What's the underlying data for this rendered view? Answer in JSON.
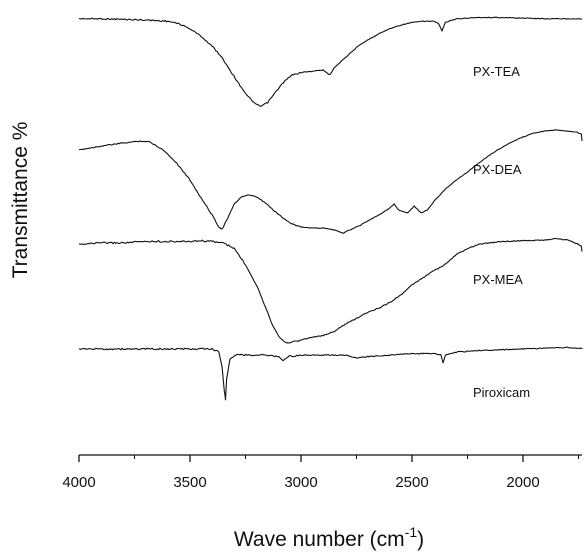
{
  "chart_data": {
    "type": "line",
    "title": "",
    "xlabel": "Wave number (cm",
    "xlabel_sup": "-1",
    "xlabel_end": ")",
    "ylabel": "Transmittance %",
    "xlim": [
      4000,
      1700
    ],
    "x_reversed": true,
    "y_ticks_shown": false,
    "grid": false,
    "x_ticks": [
      4000,
      3500,
      3000,
      2500,
      2000
    ],
    "x_tick_labels": [
      "4000",
      "3500",
      "3000",
      "2500",
      "2000"
    ],
    "series": [
      {
        "name": "PX-TEA",
        "points": [
          [
            4000,
            3
          ],
          [
            3900,
            3
          ],
          [
            3800,
            3.5
          ],
          [
            3700,
            4
          ],
          [
            3600,
            5
          ],
          [
            3550,
            7
          ],
          [
            3500,
            11
          ],
          [
            3450,
            17
          ],
          [
            3400,
            25
          ],
          [
            3360,
            33
          ],
          [
            3320,
            44
          ],
          [
            3280,
            55
          ],
          [
            3240,
            65
          ],
          [
            3200,
            72
          ],
          [
            3180,
            73
          ],
          [
            3150,
            70
          ],
          [
            3120,
            63
          ],
          [
            3080,
            54
          ],
          [
            3040,
            48
          ],
          [
            3000,
            46
          ],
          [
            2950,
            45
          ],
          [
            2900,
            44
          ],
          [
            2870,
            48
          ],
          [
            2850,
            42
          ],
          [
            2800,
            34
          ],
          [
            2750,
            26
          ],
          [
            2700,
            20
          ],
          [
            2650,
            15
          ],
          [
            2600,
            11
          ],
          [
            2550,
            8
          ],
          [
            2500,
            6
          ],
          [
            2450,
            5
          ],
          [
            2400,
            5
          ],
          [
            2380,
            7
          ],
          [
            2365,
            13
          ],
          [
            2350,
            6
          ],
          [
            2300,
            3
          ],
          [
            2200,
            2
          ],
          [
            2100,
            2
          ],
          [
            2000,
            2.5
          ],
          [
            1900,
            3
          ],
          [
            1800,
            3
          ],
          [
            1700,
            3
          ]
        ]
      },
      {
        "name": "PX-DEA",
        "points": [
          [
            4000,
            20
          ],
          [
            3900,
            16
          ],
          [
            3800,
            13
          ],
          [
            3720,
            11
          ],
          [
            3680,
            12
          ],
          [
            3620,
            20
          ],
          [
            3560,
            33
          ],
          [
            3500,
            50
          ],
          [
            3450,
            68
          ],
          [
            3400,
            85
          ],
          [
            3370,
            97
          ],
          [
            3355,
            99
          ],
          [
            3330,
            88
          ],
          [
            3300,
            74
          ],
          [
            3270,
            67
          ],
          [
            3240,
            65
          ],
          [
            3200,
            67
          ],
          [
            3160,
            73
          ],
          [
            3120,
            81
          ],
          [
            3080,
            88
          ],
          [
            3040,
            94
          ],
          [
            3000,
            97
          ],
          [
            2950,
            98
          ],
          [
            2900,
            98
          ],
          [
            2850,
            100
          ],
          [
            2810,
            103
          ],
          [
            2780,
            100
          ],
          [
            2740,
            96
          ],
          [
            2700,
            91
          ],
          [
            2650,
            85
          ],
          [
            2600,
            78
          ],
          [
            2580,
            74
          ],
          [
            2560,
            80
          ],
          [
            2520,
            83
          ],
          [
            2490,
            76
          ],
          [
            2460,
            83
          ],
          [
            2430,
            80
          ],
          [
            2400,
            71
          ],
          [
            2350,
            59
          ],
          [
            2300,
            50
          ],
          [
            2250,
            42
          ],
          [
            2200,
            33
          ],
          [
            2150,
            25
          ],
          [
            2100,
            18
          ],
          [
            2050,
            12
          ],
          [
            2000,
            7
          ],
          [
            1950,
            3
          ],
          [
            1900,
            1
          ],
          [
            1850,
            0
          ],
          [
            1800,
            1
          ],
          [
            1760,
            2
          ],
          [
            1720,
            6
          ],
          [
            1700,
            11
          ]
        ]
      },
      {
        "name": "PX-MEA",
        "points": [
          [
            4000,
            3
          ],
          [
            3900,
            2
          ],
          [
            3800,
            2
          ],
          [
            3700,
            1
          ],
          [
            3600,
            1
          ],
          [
            3500,
            1
          ],
          [
            3450,
            0.5
          ],
          [
            3400,
            1
          ],
          [
            3350,
            2
          ],
          [
            3300,
            6
          ],
          [
            3250,
            17
          ],
          [
            3200,
            31
          ],
          [
            3160,
            46
          ],
          [
            3130,
            58
          ],
          [
            3100,
            66
          ],
          [
            3080,
            70
          ],
          [
            3060,
            71
          ],
          [
            3000,
            69
          ],
          [
            2950,
            67
          ],
          [
            2900,
            66
          ],
          [
            2850,
            63
          ],
          [
            2800,
            58
          ],
          [
            2750,
            54
          ],
          [
            2700,
            50
          ],
          [
            2650,
            47
          ],
          [
            2600,
            43
          ],
          [
            2550,
            38
          ],
          [
            2500,
            31
          ],
          [
            2450,
            26
          ],
          [
            2400,
            21
          ],
          [
            2360,
            18
          ],
          [
            2300,
            10
          ],
          [
            2250,
            6
          ],
          [
            2200,
            3
          ],
          [
            2100,
            1
          ],
          [
            2000,
            0.5
          ],
          [
            1900,
            0
          ],
          [
            1850,
            -1
          ],
          [
            1800,
            0
          ],
          [
            1750,
            3
          ],
          [
            1700,
            8
          ]
        ]
      },
      {
        "name": "Piroxicam",
        "points": [
          [
            4000,
            0
          ],
          [
            3900,
            0
          ],
          [
            3800,
            0
          ],
          [
            3700,
            0
          ],
          [
            3600,
            0
          ],
          [
            3500,
            0
          ],
          [
            3400,
            0
          ],
          [
            3370,
            2
          ],
          [
            3355,
            12
          ],
          [
            3345,
            28
          ],
          [
            3340,
            33
          ],
          [
            3335,
            20
          ],
          [
            3320,
            7
          ],
          [
            3300,
            4
          ],
          [
            3250,
            4
          ],
          [
            3200,
            4
          ],
          [
            3150,
            4
          ],
          [
            3100,
            5
          ],
          [
            3080,
            8
          ],
          [
            3060,
            5
          ],
          [
            3000,
            4
          ],
          [
            2950,
            4
          ],
          [
            2900,
            4
          ],
          [
            2800,
            4
          ],
          [
            2750,
            6
          ],
          [
            2700,
            5
          ],
          [
            2600,
            4
          ],
          [
            2500,
            3
          ],
          [
            2400,
            3
          ],
          [
            2370,
            4
          ],
          [
            2360,
            9
          ],
          [
            2350,
            4
          ],
          [
            2300,
            2
          ],
          [
            2200,
            1
          ],
          [
            2100,
            0.5
          ],
          [
            2000,
            0
          ],
          [
            1900,
            -0.5
          ],
          [
            1800,
            -1
          ],
          [
            1700,
            0
          ]
        ]
      }
    ]
  }
}
